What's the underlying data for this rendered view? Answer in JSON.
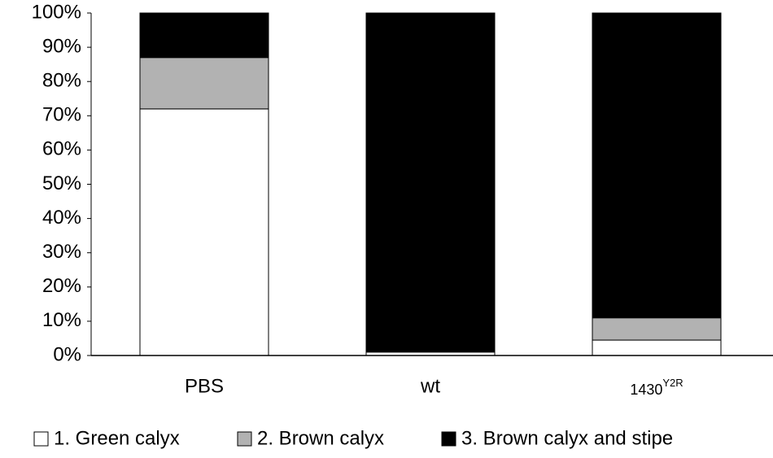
{
  "chart_data": {
    "type": "stacked_bar",
    "categories": [
      "PBS",
      "wt",
      {
        "text": "1430",
        "superscript": "Y2R"
      }
    ],
    "series": [
      {
        "name": "1. Green calyx",
        "color": "#ffffff",
        "values": [
          72,
          1,
          4.5
        ]
      },
      {
        "name": "2. Brown calyx",
        "color": "#b2b2b2",
        "values": [
          15,
          0,
          6.5
        ]
      },
      {
        "name": "3. Brown calyx and stipe",
        "color": "#000000",
        "values": [
          13,
          99,
          89
        ]
      }
    ],
    "ylim": [
      0,
      100
    ],
    "yticks": [
      {
        "value": 0,
        "label": "0%"
      },
      {
        "value": 10,
        "label": "10%"
      },
      {
        "value": 20,
        "label": "20%"
      },
      {
        "value": 30,
        "label": "30%"
      },
      {
        "value": 40,
        "label": "40%"
      },
      {
        "value": 50,
        "label": "50%"
      },
      {
        "value": 60,
        "label": "60%"
      },
      {
        "value": 70,
        "label": "70%"
      },
      {
        "value": 80,
        "label": "80%"
      },
      {
        "value": 90,
        "label": "90%"
      },
      {
        "value": 100,
        "label": "100%"
      }
    ],
    "legend": "bottom"
  }
}
